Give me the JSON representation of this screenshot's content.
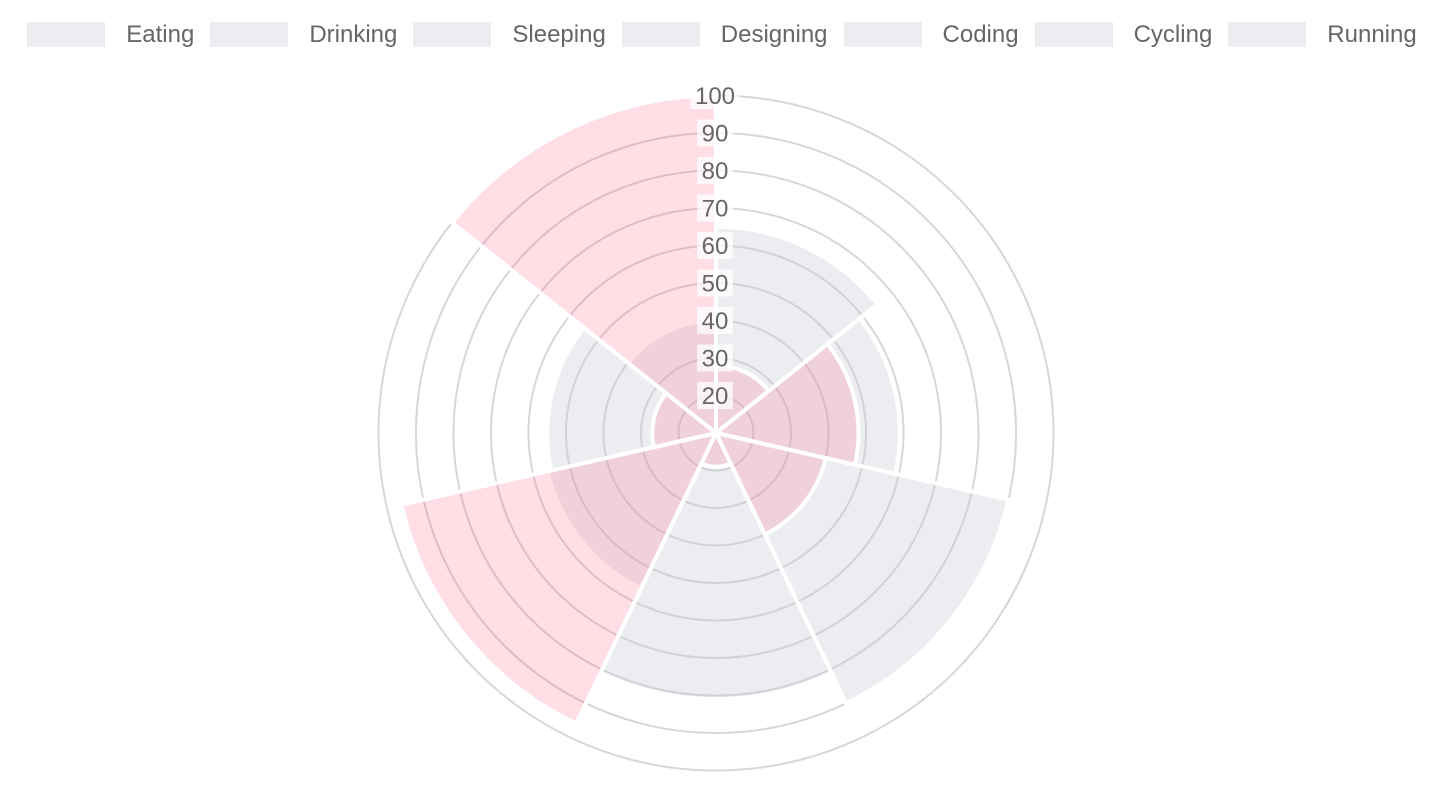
{
  "chart_data": {
    "type": "polarArea",
    "title": "",
    "categories": [
      "Eating",
      "Drinking",
      "Sleeping",
      "Designing",
      "Coding",
      "Cycling",
      "Running"
    ],
    "series": [
      {
        "name": "gray",
        "values": [
          65,
          59,
          90,
          81,
          56,
          55,
          40
        ],
        "fill": "rgba(201, 203, 212, 0.35)",
        "border": "#ffffff"
      },
      {
        "name": "pink",
        "values": [
          28,
          48,
          40,
          19,
          96,
          27,
          100
        ],
        "fill": "rgba(255, 99, 132, 0.21)",
        "border": "#ffffff"
      }
    ],
    "scale": {
      "center_value": 10,
      "max": 100,
      "step": 10,
      "tick_labels": [
        "20",
        "30",
        "40",
        "50",
        "60",
        "70",
        "80",
        "90",
        "100"
      ],
      "start_angle_deg": 0,
      "direction": "clockwise",
      "grid": true
    },
    "legend_position": "top",
    "colors": {
      "grid_line": "#d6d6dc",
      "tick_text": "#666666",
      "tick_backdrop": "rgba(255, 255, 255, 0.75)",
      "sector_border": "#ffffff",
      "legend_text": "#666666",
      "background": "#ffffff"
    }
  }
}
